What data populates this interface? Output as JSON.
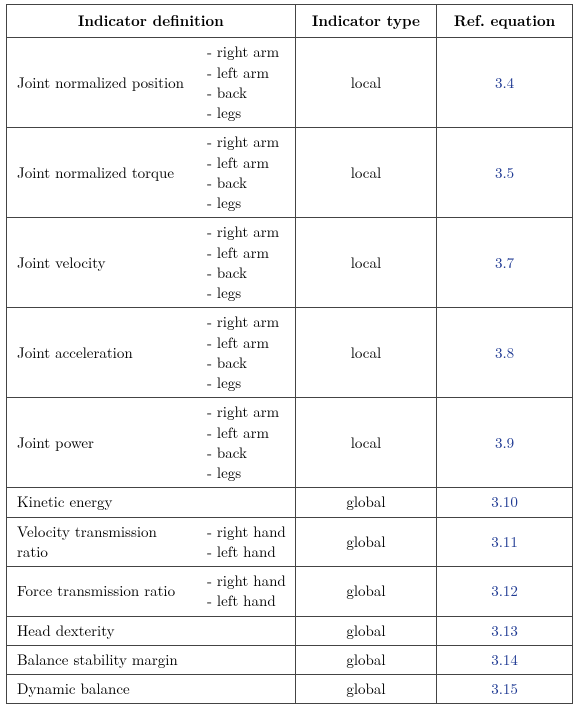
{
  "table": {
    "header": {
      "indicator_definition": "Indicator definition",
      "indicator_type": "Indicator type",
      "ref_equation": "Ref. equation"
    },
    "body_parts_4": [
      "- right arm",
      "- left arm",
      "- back",
      "- legs"
    ],
    "hand_parts": [
      "- right hand",
      "- left hand"
    ],
    "rows": [
      {
        "label": "Joint normalized position",
        "parts_key": "body_parts_4",
        "type": "local",
        "ref": "3.4"
      },
      {
        "label": "Joint normalized torque",
        "parts_key": "body_parts_4",
        "type": "local",
        "ref": "3.5"
      },
      {
        "label": "Joint velocity",
        "parts_key": "body_parts_4",
        "type": "local",
        "ref": "3.7"
      },
      {
        "label": "Joint acceleration",
        "parts_key": "body_parts_4",
        "type": "local",
        "ref": "3.8"
      },
      {
        "label": "Joint power",
        "parts_key": "body_parts_4",
        "type": "local",
        "ref": "3.9"
      },
      {
        "label": "Kinetic energy",
        "parts_key": null,
        "type": "global",
        "ref": "3.10"
      },
      {
        "label": "Velocity transmission ratio",
        "parts_key": "hand_parts",
        "type": "global",
        "ref": "3.11"
      },
      {
        "label": "Force transmission ratio",
        "parts_key": "hand_parts",
        "type": "global",
        "ref": "3.12"
      },
      {
        "label": "Head dexterity",
        "parts_key": null,
        "type": "global",
        "ref": "3.13"
      },
      {
        "label": "Balance stability margin",
        "parts_key": null,
        "type": "global",
        "ref": "3.14"
      },
      {
        "label": "Dynamic balance",
        "parts_key": null,
        "type": "global",
        "ref": "3.15"
      }
    ],
    "colors": {
      "border": "#444444",
      "ref_link": "#1f3a93",
      "text": "#000000",
      "background": "#ffffff"
    },
    "font": {
      "family": "Latin Modern Roman / CMU Serif",
      "size_pt": 11
    }
  }
}
